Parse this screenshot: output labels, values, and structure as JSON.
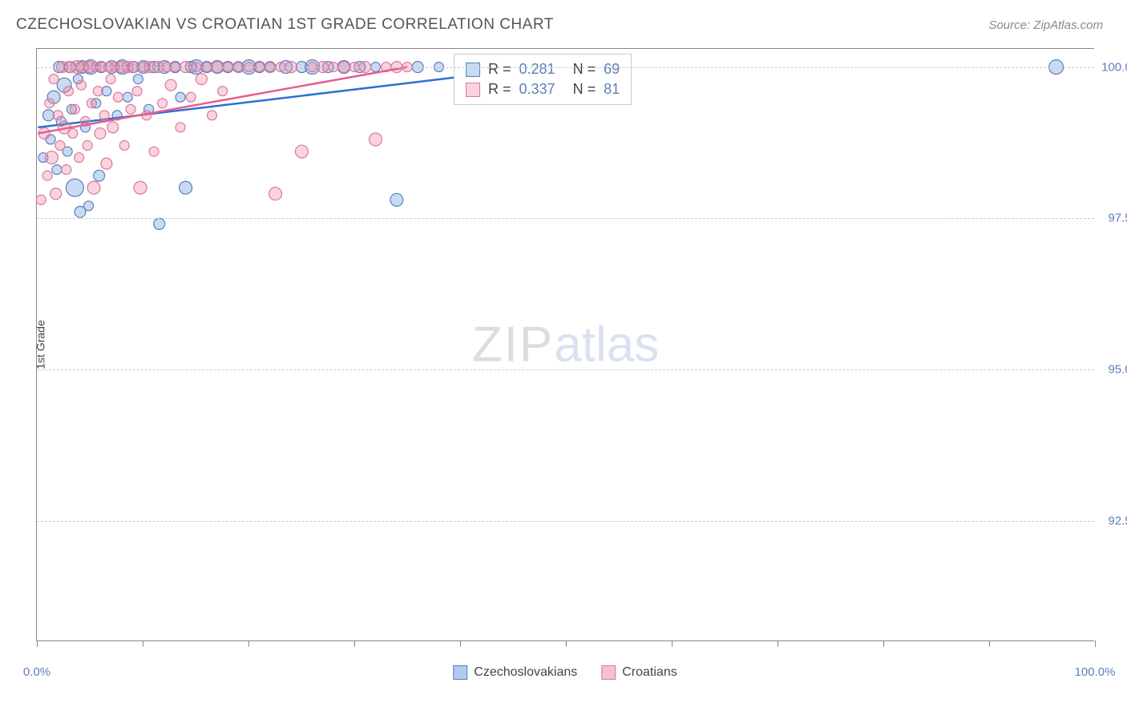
{
  "header": {
    "title": "CZECHOSLOVAKIAN VS CROATIAN 1ST GRADE CORRELATION CHART",
    "source": "Source: ZipAtlas.com"
  },
  "chart": {
    "type": "scatter",
    "y_axis_label": "1st Grade",
    "background_color": "#ffffff",
    "grid_color": "#cccccc",
    "axis_color": "#888888",
    "xlim": [
      0,
      100
    ],
    "ylim": [
      90.5,
      100.3
    ],
    "x_ticks": [
      0,
      10,
      20,
      30,
      40,
      50,
      60,
      70,
      80,
      90,
      100
    ],
    "x_tick_labels": {
      "0": "0.0%",
      "100": "100.0%"
    },
    "y_gridlines": [
      92.5,
      95.0,
      97.5,
      100.0
    ],
    "y_tick_labels": [
      "92.5%",
      "95.0%",
      "97.5%",
      "100.0%"
    ],
    "watermark": {
      "zip": "ZIP",
      "atlas": "atlas"
    },
    "series": [
      {
        "name": "Czechoslovakians",
        "color_fill": "rgba(100,150,220,0.35)",
        "color_stroke": "#5b7fb8",
        "line_color": "#2e6fd6",
        "r_value": "0.281",
        "n_value": "69",
        "trend": {
          "x1": 0,
          "y1": 99.0,
          "x2": 43,
          "y2": 99.9
        },
        "points": [
          {
            "x": 0.5,
            "y": 98.5,
            "r": 6
          },
          {
            "x": 1.0,
            "y": 99.2,
            "r": 7
          },
          {
            "x": 1.2,
            "y": 98.8,
            "r": 6
          },
          {
            "x": 1.5,
            "y": 99.5,
            "r": 8
          },
          {
            "x": 1.8,
            "y": 98.3,
            "r": 6
          },
          {
            "x": 2.0,
            "y": 100.0,
            "r": 7
          },
          {
            "x": 2.2,
            "y": 99.1,
            "r": 6
          },
          {
            "x": 2.5,
            "y": 99.7,
            "r": 9
          },
          {
            "x": 2.8,
            "y": 98.6,
            "r": 6
          },
          {
            "x": 3.0,
            "y": 100.0,
            "r": 7
          },
          {
            "x": 3.2,
            "y": 99.3,
            "r": 6
          },
          {
            "x": 3.5,
            "y": 98.0,
            "r": 11
          },
          {
            "x": 3.8,
            "y": 99.8,
            "r": 6
          },
          {
            "x": 4.0,
            "y": 97.6,
            "r": 7
          },
          {
            "x": 4.2,
            "y": 100.0,
            "r": 8
          },
          {
            "x": 4.5,
            "y": 99.0,
            "r": 6
          },
          {
            "x": 4.8,
            "y": 97.7,
            "r": 6
          },
          {
            "x": 5.0,
            "y": 100.0,
            "r": 9
          },
          {
            "x": 5.5,
            "y": 99.4,
            "r": 6
          },
          {
            "x": 5.8,
            "y": 98.2,
            "r": 7
          },
          {
            "x": 6.0,
            "y": 100.0,
            "r": 7
          },
          {
            "x": 6.5,
            "y": 99.6,
            "r": 6
          },
          {
            "x": 7.0,
            "y": 100.0,
            "r": 8
          },
          {
            "x": 7.5,
            "y": 99.2,
            "r": 6
          },
          {
            "x": 8.0,
            "y": 100.0,
            "r": 9
          },
          {
            "x": 8.5,
            "y": 99.5,
            "r": 6
          },
          {
            "x": 9.0,
            "y": 100.0,
            "r": 7
          },
          {
            "x": 9.5,
            "y": 99.8,
            "r": 6
          },
          {
            "x": 10.0,
            "y": 100.0,
            "r": 8
          },
          {
            "x": 10.5,
            "y": 99.3,
            "r": 6
          },
          {
            "x": 11.0,
            "y": 100.0,
            "r": 7
          },
          {
            "x": 11.5,
            "y": 97.4,
            "r": 7
          },
          {
            "x": 12.0,
            "y": 100.0,
            "r": 8
          },
          {
            "x": 13.0,
            "y": 100.0,
            "r": 7
          },
          {
            "x": 13.5,
            "y": 99.5,
            "r": 6
          },
          {
            "x": 14.0,
            "y": 98.0,
            "r": 8
          },
          {
            "x": 14.5,
            "y": 100.0,
            "r": 7
          },
          {
            "x": 15.0,
            "y": 100.0,
            "r": 9
          },
          {
            "x": 16.0,
            "y": 100.0,
            "r": 7
          },
          {
            "x": 17.0,
            "y": 100.0,
            "r": 8
          },
          {
            "x": 18.0,
            "y": 100.0,
            "r": 7
          },
          {
            "x": 19.0,
            "y": 100.0,
            "r": 6
          },
          {
            "x": 20.0,
            "y": 100.0,
            "r": 9
          },
          {
            "x": 21.0,
            "y": 100.0,
            "r": 7
          },
          {
            "x": 22.0,
            "y": 100.0,
            "r": 6
          },
          {
            "x": 23.5,
            "y": 100.0,
            "r": 8
          },
          {
            "x": 25.0,
            "y": 100.0,
            "r": 7
          },
          {
            "x": 26.0,
            "y": 100.0,
            "r": 9
          },
          {
            "x": 27.5,
            "y": 100.0,
            "r": 7
          },
          {
            "x": 29.0,
            "y": 100.0,
            "r": 8
          },
          {
            "x": 30.5,
            "y": 100.0,
            "r": 7
          },
          {
            "x": 32.0,
            "y": 100.0,
            "r": 6
          },
          {
            "x": 34.0,
            "y": 97.8,
            "r": 8
          },
          {
            "x": 36.0,
            "y": 100.0,
            "r": 7
          },
          {
            "x": 38.0,
            "y": 100.0,
            "r": 6
          },
          {
            "x": 40.0,
            "y": 100.0,
            "r": 7
          },
          {
            "x": 42.0,
            "y": 100.0,
            "r": 6
          },
          {
            "x": 96.5,
            "y": 100.0,
            "r": 9
          }
        ]
      },
      {
        "name": "Croatians",
        "color_fill": "rgba(240,130,160,0.35)",
        "color_stroke": "#d87a9b",
        "line_color": "#e85d8e",
        "r_value": "0.337",
        "n_value": "81",
        "trend": {
          "x1": 0,
          "y1": 98.9,
          "x2": 35,
          "y2": 100.0
        },
        "points": [
          {
            "x": 0.3,
            "y": 97.8,
            "r": 6
          },
          {
            "x": 0.6,
            "y": 98.9,
            "r": 7
          },
          {
            "x": 0.9,
            "y": 98.2,
            "r": 6
          },
          {
            "x": 1.1,
            "y": 99.4,
            "r": 6
          },
          {
            "x": 1.3,
            "y": 98.5,
            "r": 8
          },
          {
            "x": 1.5,
            "y": 99.8,
            "r": 6
          },
          {
            "x": 1.7,
            "y": 97.9,
            "r": 7
          },
          {
            "x": 1.9,
            "y": 99.2,
            "r": 6
          },
          {
            "x": 2.1,
            "y": 98.7,
            "r": 6
          },
          {
            "x": 2.3,
            "y": 100.0,
            "r": 7
          },
          {
            "x": 2.5,
            "y": 99.0,
            "r": 8
          },
          {
            "x": 2.7,
            "y": 98.3,
            "r": 6
          },
          {
            "x": 2.9,
            "y": 99.6,
            "r": 6
          },
          {
            "x": 3.1,
            "y": 100.0,
            "r": 7
          },
          {
            "x": 3.3,
            "y": 98.9,
            "r": 6
          },
          {
            "x": 3.5,
            "y": 99.3,
            "r": 6
          },
          {
            "x": 3.7,
            "y": 100.0,
            "r": 8
          },
          {
            "x": 3.9,
            "y": 98.5,
            "r": 6
          },
          {
            "x": 4.1,
            "y": 99.7,
            "r": 6
          },
          {
            "x": 4.3,
            "y": 100.0,
            "r": 7
          },
          {
            "x": 4.5,
            "y": 99.1,
            "r": 6
          },
          {
            "x": 4.7,
            "y": 98.7,
            "r": 6
          },
          {
            "x": 4.9,
            "y": 100.0,
            "r": 7
          },
          {
            "x": 5.1,
            "y": 99.4,
            "r": 6
          },
          {
            "x": 5.3,
            "y": 98.0,
            "r": 8
          },
          {
            "x": 5.5,
            "y": 100.0,
            "r": 6
          },
          {
            "x": 5.7,
            "y": 99.6,
            "r": 6
          },
          {
            "x": 5.9,
            "y": 98.9,
            "r": 7
          },
          {
            "x": 6.1,
            "y": 100.0,
            "r": 6
          },
          {
            "x": 6.3,
            "y": 99.2,
            "r": 6
          },
          {
            "x": 6.5,
            "y": 98.4,
            "r": 7
          },
          {
            "x": 6.7,
            "y": 100.0,
            "r": 6
          },
          {
            "x": 6.9,
            "y": 99.8,
            "r": 6
          },
          {
            "x": 7.1,
            "y": 99.0,
            "r": 7
          },
          {
            "x": 7.3,
            "y": 100.0,
            "r": 6
          },
          {
            "x": 7.6,
            "y": 99.5,
            "r": 6
          },
          {
            "x": 7.9,
            "y": 100.0,
            "r": 7
          },
          {
            "x": 8.2,
            "y": 98.7,
            "r": 6
          },
          {
            "x": 8.5,
            "y": 100.0,
            "r": 7
          },
          {
            "x": 8.8,
            "y": 99.3,
            "r": 6
          },
          {
            "x": 9.1,
            "y": 100.0,
            "r": 7
          },
          {
            "x": 9.4,
            "y": 99.6,
            "r": 6
          },
          {
            "x": 9.7,
            "y": 98.0,
            "r": 8
          },
          {
            "x": 10.0,
            "y": 100.0,
            "r": 6
          },
          {
            "x": 10.3,
            "y": 99.2,
            "r": 6
          },
          {
            "x": 10.6,
            "y": 100.0,
            "r": 7
          },
          {
            "x": 11.0,
            "y": 98.6,
            "r": 6
          },
          {
            "x": 11.4,
            "y": 100.0,
            "r": 7
          },
          {
            "x": 11.8,
            "y": 99.4,
            "r": 6
          },
          {
            "x": 12.2,
            "y": 100.0,
            "r": 6
          },
          {
            "x": 12.6,
            "y": 99.7,
            "r": 7
          },
          {
            "x": 13.0,
            "y": 100.0,
            "r": 6
          },
          {
            "x": 13.5,
            "y": 99.0,
            "r": 6
          },
          {
            "x": 14.0,
            "y": 100.0,
            "r": 7
          },
          {
            "x": 14.5,
            "y": 99.5,
            "r": 6
          },
          {
            "x": 15.0,
            "y": 100.0,
            "r": 6
          },
          {
            "x": 15.5,
            "y": 99.8,
            "r": 7
          },
          {
            "x": 16.0,
            "y": 100.0,
            "r": 6
          },
          {
            "x": 16.5,
            "y": 99.2,
            "r": 6
          },
          {
            "x": 17.0,
            "y": 100.0,
            "r": 7
          },
          {
            "x": 17.5,
            "y": 99.6,
            "r": 6
          },
          {
            "x": 18.0,
            "y": 100.0,
            "r": 6
          },
          {
            "x": 19.0,
            "y": 100.0,
            "r": 7
          },
          {
            "x": 20.0,
            "y": 100.0,
            "r": 6
          },
          {
            "x": 21.0,
            "y": 100.0,
            "r": 6
          },
          {
            "x": 22.0,
            "y": 100.0,
            "r": 7
          },
          {
            "x": 22.5,
            "y": 97.9,
            "r": 8
          },
          {
            "x": 23.0,
            "y": 100.0,
            "r": 6
          },
          {
            "x": 24.0,
            "y": 100.0,
            "r": 7
          },
          {
            "x": 25.0,
            "y": 98.6,
            "r": 8
          },
          {
            "x": 26.0,
            "y": 100.0,
            "r": 6
          },
          {
            "x": 27.0,
            "y": 100.0,
            "r": 7
          },
          {
            "x": 28.0,
            "y": 100.0,
            "r": 6
          },
          {
            "x": 29.0,
            "y": 100.0,
            "r": 7
          },
          {
            "x": 30.0,
            "y": 100.0,
            "r": 6
          },
          {
            "x": 31.0,
            "y": 100.0,
            "r": 7
          },
          {
            "x": 32.0,
            "y": 98.8,
            "r": 8
          },
          {
            "x": 33.0,
            "y": 100.0,
            "r": 6
          },
          {
            "x": 34.0,
            "y": 100.0,
            "r": 7
          },
          {
            "x": 35.0,
            "y": 100.0,
            "r": 6
          }
        ]
      }
    ],
    "bottom_legend": [
      {
        "label": "Czechoslovakians",
        "fill": "rgba(100,150,220,0.5)",
        "stroke": "#5b7fb8"
      },
      {
        "label": "Croatians",
        "fill": "rgba(240,130,160,0.5)",
        "stroke": "#d87a9b"
      }
    ]
  }
}
